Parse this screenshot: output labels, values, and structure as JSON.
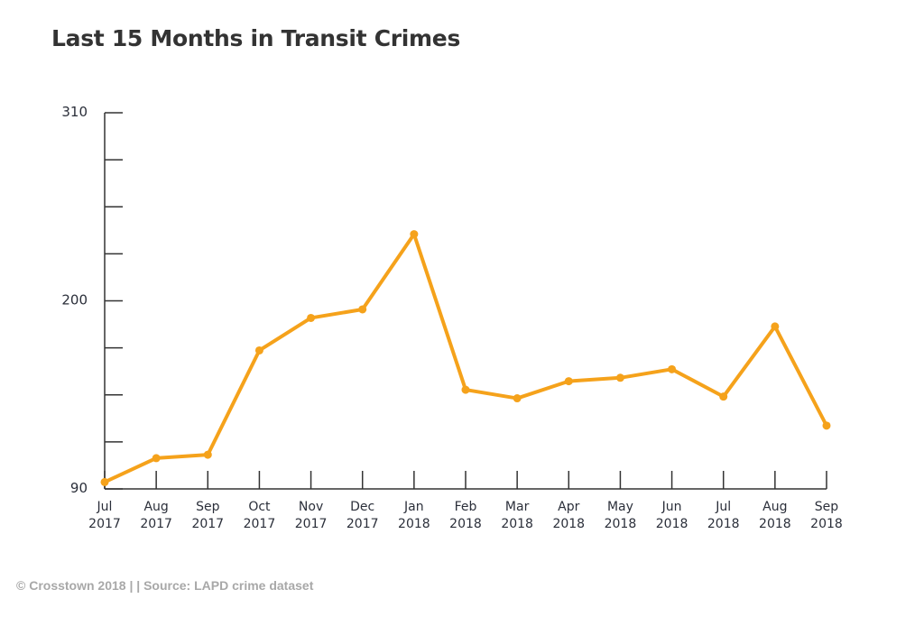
{
  "title": "Last 15 Months in Transit Crimes",
  "footer": "© Crosstown 2018 | | Source: LAPD crime dataset",
  "colors": {
    "line": "#F5A21B",
    "axis": "#333333",
    "title": "#333333",
    "footer": "#a8a8a8"
  },
  "chart_data": {
    "type": "line",
    "title": "Last 15 Months in Transit Crimes",
    "xlabel": "",
    "ylabel": "",
    "ylim": [
      90,
      310
    ],
    "yticks_labeled": [
      310,
      200,
      90
    ],
    "yticks_minor_step": 27.5,
    "grid": false,
    "categories": [
      [
        "Jul",
        "2017"
      ],
      [
        "Aug",
        "2017"
      ],
      [
        "Sep",
        "2017"
      ],
      [
        "Oct",
        "2017"
      ],
      [
        "Nov",
        "2017"
      ],
      [
        "Dec",
        "2017"
      ],
      [
        "Jan",
        "2018"
      ],
      [
        "Feb",
        "2018"
      ],
      [
        "Mar",
        "2018"
      ],
      [
        "Apr",
        "2018"
      ],
      [
        "May",
        "2018"
      ],
      [
        "Jun",
        "2018"
      ],
      [
        "Jul",
        "2018"
      ],
      [
        "Aug",
        "2018"
      ],
      [
        "Sep",
        "2018"
      ]
    ],
    "series": [
      {
        "values": [
          94,
          108,
          110,
          171,
          190,
          195,
          239,
          148,
          143,
          153,
          155,
          160,
          144,
          185,
          127
        ]
      }
    ]
  }
}
